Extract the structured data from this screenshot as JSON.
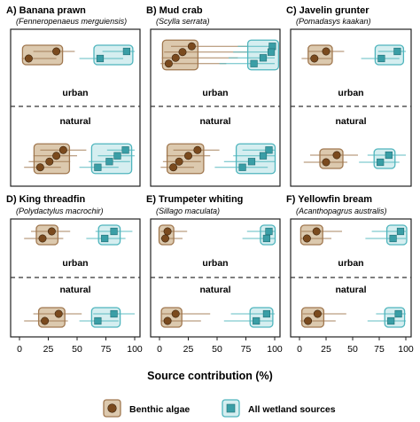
{
  "chart_data": {
    "type": "scatter",
    "xlabel": "Source contribution (%)",
    "xlim": [
      0,
      100
    ],
    "xticks": [
      "0",
      "25",
      "50",
      "75",
      "100"
    ],
    "legend": {
      "placement": "bottom",
      "entries": [
        {
          "label": "Benthic algae",
          "marker": "circle",
          "color": "#7a4a1e",
          "box_fill": "#dcc9ae",
          "box_stroke": "#a07850"
        },
        {
          "label": "All wetland sources",
          "marker": "square",
          "color": "#3a9ea6",
          "box_fill": "#d5eef0",
          "box_stroke": "#4fb5bd"
        }
      ]
    },
    "habitats": [
      "urban",
      "natural"
    ],
    "panels": [
      {
        "label": "A) Banana prawn",
        "species": "(Fenneropenaeus merguiensis)",
        "urban": {
          "algae": [
            {
              "x": 32,
              "lo": 12,
              "hi": 48
            },
            {
              "x": 8,
              "lo": 2,
              "hi": 32
            }
          ],
          "wetland": [
            {
              "x": 93,
              "lo": 72,
              "hi": 100
            },
            {
              "x": 70,
              "lo": 52,
              "hi": 90
            }
          ]
        },
        "natural": {
          "algae": [
            {
              "x": 38,
              "lo": 18,
              "hi": 58
            },
            {
              "x": 32,
              "lo": 12,
              "hi": 50
            },
            {
              "x": 26,
              "lo": 8,
              "hi": 44
            },
            {
              "x": 18,
              "lo": 4,
              "hi": 36
            }
          ],
          "wetland": [
            {
              "x": 92,
              "lo": 76,
              "hi": 100
            },
            {
              "x": 85,
              "lo": 68,
              "hi": 100
            },
            {
              "x": 78,
              "lo": 60,
              "hi": 96
            },
            {
              "x": 68,
              "lo": 52,
              "hi": 86
            }
          ]
        }
      },
      {
        "label": "B) Mud crab",
        "species": "(Scylla serrata)",
        "urban": {
          "algae": [
            {
              "x": 28,
              "lo": 10,
              "hi": 82
            },
            {
              "x": 20,
              "lo": 4,
              "hi": 76
            },
            {
              "x": 14,
              "lo": 2,
              "hi": 68
            },
            {
              "x": 8,
              "lo": 1,
              "hi": 58
            }
          ],
          "wetland": [
            {
              "x": 98,
              "lo": 68,
              "hi": 100
            },
            {
              "x": 97,
              "lo": 64,
              "hi": 100
            },
            {
              "x": 90,
              "lo": 60,
              "hi": 100
            },
            {
              "x": 82,
              "lo": 52,
              "hi": 100
            }
          ]
        },
        "natural": {
          "algae": [
            {
              "x": 33,
              "lo": 12,
              "hi": 52
            },
            {
              "x": 25,
              "lo": 6,
              "hi": 44
            },
            {
              "x": 17,
              "lo": 3,
              "hi": 36
            },
            {
              "x": 12,
              "lo": 1,
              "hi": 30
            }
          ],
          "wetland": [
            {
              "x": 95,
              "lo": 72,
              "hi": 100
            },
            {
              "x": 90,
              "lo": 64,
              "hi": 100
            },
            {
              "x": 80,
              "lo": 56,
              "hi": 100
            },
            {
              "x": 72,
              "lo": 48,
              "hi": 94
            }
          ]
        }
      },
      {
        "label": "C) Javelin grunter",
        "species": "(Pomadasys kaakan)",
        "urban": {
          "algae": [
            {
              "x": 25,
              "lo": 8,
              "hi": 42
            },
            {
              "x": 14,
              "lo": 2,
              "hi": 30
            }
          ],
          "wetland": [
            {
              "x": 92,
              "lo": 74,
              "hi": 100
            },
            {
              "x": 77,
              "lo": 58,
              "hi": 94
            }
          ]
        },
        "natural": {
          "algae": [
            {
              "x": 35,
              "lo": 10,
              "hi": 55
            },
            {
              "x": 25,
              "lo": 4,
              "hi": 45
            }
          ],
          "wetland": [
            {
              "x": 84,
              "lo": 64,
              "hi": 100
            },
            {
              "x": 76,
              "lo": 56,
              "hi": 94
            }
          ]
        }
      },
      {
        "label": "D) King threadfin",
        "species": "(Polydactylus macrochir)",
        "urban": {
          "algae": [
            {
              "x": 28,
              "lo": 10,
              "hi": 44
            },
            {
              "x": 20,
              "lo": 4,
              "hi": 38
            }
          ],
          "wetland": [
            {
              "x": 82,
              "lo": 66,
              "hi": 98
            },
            {
              "x": 74,
              "lo": 58,
              "hi": 92
            }
          ]
        },
        "natural": {
          "algae": [
            {
              "x": 34,
              "lo": 12,
              "hi": 54
            },
            {
              "x": 22,
              "lo": 4,
              "hi": 42
            }
          ],
          "wetland": [
            {
              "x": 82,
              "lo": 64,
              "hi": 100
            },
            {
              "x": 68,
              "lo": 52,
              "hi": 86
            }
          ]
        }
      },
      {
        "label": "E) Trumpeter whiting",
        "species": "(Sillago maculata)",
        "urban": {
          "algae": [
            {
              "x": 7,
              "lo": 1,
              "hi": 24
            },
            {
              "x": 5,
              "lo": 1,
              "hi": 20
            }
          ],
          "wetland": [
            {
              "x": 95,
              "lo": 76,
              "hi": 100
            },
            {
              "x": 93,
              "lo": 72,
              "hi": 100
            }
          ]
        },
        "natural": {
          "algae": [
            {
              "x": 14,
              "lo": 2,
              "hi": 44
            },
            {
              "x": 7,
              "lo": 1,
              "hi": 36
            }
          ],
          "wetland": [
            {
              "x": 93,
              "lo": 62,
              "hi": 100
            },
            {
              "x": 84,
              "lo": 56,
              "hi": 98
            }
          ]
        }
      },
      {
        "label": "F) Yellowfin bream",
        "species": "(Acanthopagrus australis)",
        "urban": {
          "algae": [
            {
              "x": 16,
              "lo": 2,
              "hi": 40
            },
            {
              "x": 7,
              "lo": 1,
              "hi": 30
            }
          ],
          "wetland": [
            {
              "x": 95,
              "lo": 68,
              "hi": 100
            },
            {
              "x": 88,
              "lo": 62,
              "hi": 100
            }
          ]
        },
        "natural": {
          "algae": [
            {
              "x": 17,
              "lo": 3,
              "hi": 44
            },
            {
              "x": 8,
              "lo": 1,
              "hi": 34
            }
          ],
          "wetland": [
            {
              "x": 93,
              "lo": 72,
              "hi": 100
            },
            {
              "x": 86,
              "lo": 64,
              "hi": 100
            }
          ]
        }
      }
    ]
  }
}
